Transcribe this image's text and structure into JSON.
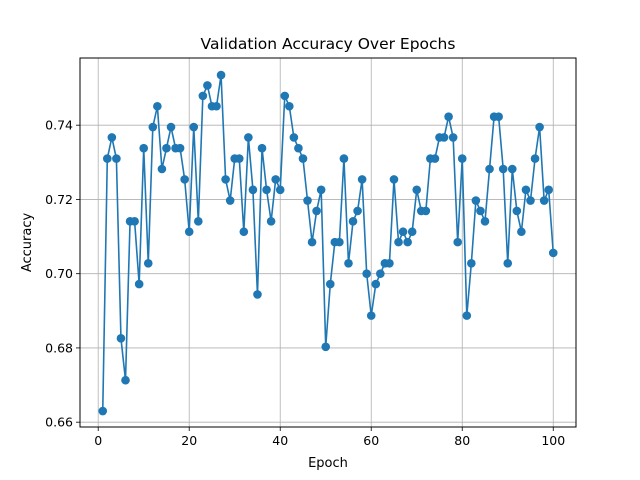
{
  "chart_data": {
    "type": "line",
    "title": "Validation Accuracy Over Epochs",
    "xlabel": "Epoch",
    "ylabel": "Accuracy",
    "xlim": [
      -4,
      105
    ],
    "ylim": [
      0.6587,
      0.7581
    ],
    "xticks": [
      0,
      20,
      40,
      60,
      80,
      100
    ],
    "yticks": [
      0.66,
      0.68,
      0.7,
      0.72,
      0.74
    ],
    "xtick_labels": [
      "0",
      "20",
      "40",
      "60",
      "80",
      "100"
    ],
    "ytick_labels": [
      "0.66",
      "0.68",
      "0.70",
      "0.72",
      "0.74"
    ],
    "grid": true,
    "legend": "none",
    "marker": "circle",
    "colors": {
      "series": "#1f77b4",
      "grid": "#b0b0b0",
      "axes": "#000000"
    },
    "series": [
      {
        "x": [
          1,
          2,
          3,
          4,
          5,
          6,
          7,
          8,
          9,
          10,
          11,
          12,
          13,
          14,
          15,
          16,
          17,
          18,
          19,
          20,
          21,
          22,
          23,
          24,
          25,
          26,
          27,
          28,
          29,
          30,
          31,
          32,
          33,
          34,
          35,
          36,
          37,
          38,
          39,
          40,
          41,
          42,
          43,
          44,
          45,
          46,
          47,
          48,
          49,
          50,
          51,
          52,
          53,
          54,
          55,
          56,
          57,
          58,
          59,
          60,
          61,
          62,
          63,
          64,
          65,
          66,
          67,
          68,
          69,
          70,
          71,
          72,
          73,
          74,
          75,
          76,
          77,
          78,
          79,
          80,
          81,
          82,
          83,
          84,
          85,
          86,
          87,
          88,
          89,
          90,
          91,
          92,
          93,
          94,
          95,
          96,
          97,
          98,
          99,
          100
        ],
        "values": [
          0.663,
          0.731,
          0.7367,
          0.731,
          0.6826,
          0.6713,
          0.7141,
          0.7141,
          0.6972,
          0.7338,
          0.7028,
          0.7395,
          0.7451,
          0.7282,
          0.7338,
          0.7395,
          0.7338,
          0.7338,
          0.7254,
          0.7113,
          0.7395,
          0.7141,
          0.7479,
          0.7507,
          0.7451,
          0.7451,
          0.7535,
          0.7254,
          0.7197,
          0.731,
          0.731,
          0.7113,
          0.7367,
          0.7226,
          0.6944,
          0.7338,
          0.7226,
          0.7141,
          0.7254,
          0.7226,
          0.7479,
          0.7451,
          0.7367,
          0.7338,
          0.731,
          0.7197,
          0.7085,
          0.7169,
          0.7226,
          0.6803,
          0.6972,
          0.7085,
          0.7085,
          0.731,
          0.7028,
          0.7141,
          0.7169,
          0.7254,
          0.7,
          0.6887,
          0.6972,
          0.7,
          0.7028,
          0.7028,
          0.7254,
          0.7085,
          0.7113,
          0.7085,
          0.7113,
          0.7226,
          0.7169,
          0.7169,
          0.731,
          0.731,
          0.7367,
          0.7367,
          0.7423,
          0.7367,
          0.7085,
          0.731,
          0.6887,
          0.7028,
          0.7197,
          0.7169,
          0.7141,
          0.7282,
          0.7423,
          0.7423,
          0.7282,
          0.7028,
          0.7282,
          0.7169,
          0.7113,
          0.7226,
          0.7197,
          0.731,
          0.7395,
          0.7197,
          0.7226,
          0.7056
        ]
      }
    ]
  }
}
